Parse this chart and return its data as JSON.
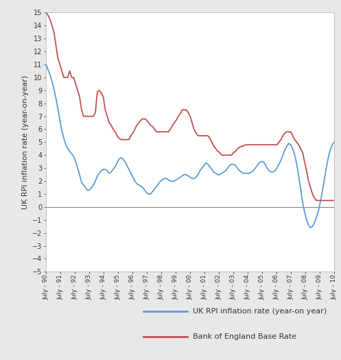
{
  "ylabel": "UK RPI inflation rate (year-on-year)",
  "ylim": [
    -5,
    15
  ],
  "yticks": [
    -5,
    -4,
    -3,
    -2,
    -1,
    0,
    1,
    2,
    3,
    4,
    5,
    6,
    7,
    8,
    9,
    10,
    11,
    12,
    13,
    14,
    15
  ],
  "outer_bg": "#e8e8e8",
  "plot_bg_color": "#ffffff",
  "rpi_color": "#5b9bd5",
  "base_color": "#c0504d",
  "line_width": 1.3,
  "legend_rpi": "UK RPI inflation rate (year-on year)",
  "legend_base": "Bank of England Base Rate",
  "x_labels": [
    "July - 90",
    "July - 91",
    "July - 92",
    "July - 93",
    "July - 94",
    "July - 95",
    "July - 96",
    "July - 97",
    "July - 98",
    "July - 99",
    "July - 00",
    "July - 01",
    "July - 02",
    "July - 03",
    "July - 04",
    "July - 05",
    "July - 06",
    "July - 07",
    "July - 08",
    "July - 09",
    "July - 10"
  ],
  "rpi_data": [
    11.0,
    10.6,
    10.2,
    9.7,
    9.1,
    8.4,
    7.6,
    6.7,
    5.9,
    5.3,
    4.8,
    4.5,
    4.3,
    4.1,
    3.9,
    3.5,
    3.0,
    2.5,
    1.9,
    1.7,
    1.5,
    1.3,
    1.3,
    1.5,
    1.7,
    2.0,
    2.4,
    2.6,
    2.8,
    2.9,
    2.9,
    2.8,
    2.6,
    2.7,
    2.9,
    3.1,
    3.4,
    3.7,
    3.8,
    3.7,
    3.5,
    3.2,
    2.9,
    2.6,
    2.3,
    2.0,
    1.8,
    1.7,
    1.6,
    1.5,
    1.3,
    1.1,
    1.0,
    1.0,
    1.2,
    1.4,
    1.6,
    1.8,
    2.0,
    2.1,
    2.2,
    2.2,
    2.1,
    2.0,
    2.0,
    2.0,
    2.1,
    2.2,
    2.3,
    2.4,
    2.5,
    2.5,
    2.4,
    2.3,
    2.2,
    2.2,
    2.3,
    2.5,
    2.8,
    3.0,
    3.2,
    3.4,
    3.3,
    3.1,
    2.9,
    2.7,
    2.6,
    2.5,
    2.5,
    2.6,
    2.7,
    2.8,
    3.0,
    3.2,
    3.3,
    3.3,
    3.2,
    3.0,
    2.8,
    2.7,
    2.6,
    2.6,
    2.6,
    2.6,
    2.7,
    2.8,
    3.0,
    3.2,
    3.4,
    3.5,
    3.5,
    3.3,
    3.0,
    2.8,
    2.7,
    2.7,
    2.8,
    3.0,
    3.3,
    3.6,
    4.0,
    4.4,
    4.7,
    4.9,
    4.8,
    4.5,
    4.0,
    3.3,
    2.4,
    1.4,
    0.4,
    -0.4,
    -1.0,
    -1.4,
    -1.6,
    -1.5,
    -1.2,
    -0.8,
    -0.3,
    0.4,
    1.2,
    2.1,
    3.0,
    3.8,
    4.4,
    4.8,
    5.0
  ],
  "base_data": [
    15.0,
    14.8,
    14.5,
    14.0,
    13.5,
    12.5,
    11.5,
    11.0,
    10.5,
    10.0,
    10.0,
    10.0,
    10.5,
    10.0,
    10.0,
    9.5,
    9.0,
    8.5,
    7.5,
    7.0,
    7.0,
    7.0,
    7.0,
    7.0,
    7.0,
    7.3,
    8.9,
    9.0,
    8.8,
    8.5,
    7.5,
    7.0,
    6.5,
    6.3,
    6.0,
    5.8,
    5.5,
    5.3,
    5.2,
    5.2,
    5.2,
    5.2,
    5.2,
    5.5,
    5.7,
    6.0,
    6.3,
    6.5,
    6.7,
    6.8,
    6.8,
    6.7,
    6.5,
    6.3,
    6.2,
    6.0,
    5.8,
    5.8,
    5.8,
    5.8,
    5.8,
    5.8,
    5.8,
    6.0,
    6.3,
    6.5,
    6.7,
    7.0,
    7.2,
    7.5,
    7.5,
    7.5,
    7.3,
    7.0,
    6.5,
    6.0,
    5.7,
    5.5,
    5.5,
    5.5,
    5.5,
    5.5,
    5.5,
    5.3,
    5.0,
    4.7,
    4.5,
    4.3,
    4.2,
    4.0,
    4.0,
    4.0,
    4.0,
    4.0,
    4.0,
    4.2,
    4.3,
    4.5,
    4.6,
    4.7,
    4.7,
    4.8,
    4.8,
    4.8,
    4.8,
    4.8,
    4.8,
    4.8,
    4.8,
    4.8,
    4.8,
    4.8,
    4.8,
    4.8,
    4.8,
    4.8,
    4.8,
    4.8,
    5.0,
    5.2,
    5.5,
    5.7,
    5.8,
    5.8,
    5.8,
    5.5,
    5.2,
    5.0,
    4.8,
    4.5,
    4.2,
    3.5,
    2.8,
    2.0,
    1.5,
    1.0,
    0.7,
    0.5,
    0.5,
    0.5,
    0.5,
    0.5,
    0.5,
    0.5,
    0.5,
    0.5,
    0.5
  ]
}
